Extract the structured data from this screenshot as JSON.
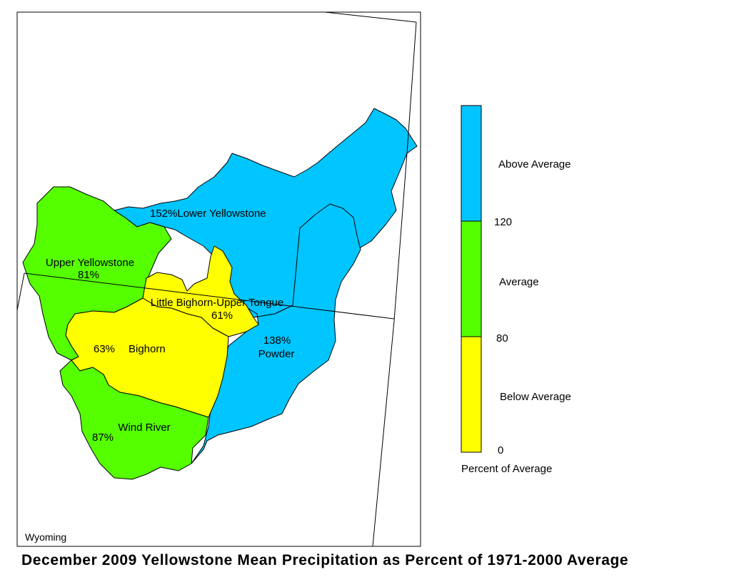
{
  "title": "December 2009 Yellowstone Mean Precipitation as Percent of 1971-2000 Average",
  "state_label": "Wyoming",
  "colors": {
    "above": "#00c5ff",
    "average": "#55ff00",
    "below": "#ffff00",
    "border": "#000000"
  },
  "basins": {
    "lower_yellowstone": {
      "name": "Lower Yellowstone",
      "percent": "152%",
      "category": "above"
    },
    "upper_yellowstone": {
      "name": "Upper Yellowstone",
      "percent": "81%",
      "category": "average"
    },
    "little_bighorn": {
      "name": "Little Bighorn-Upper Tongue",
      "percent": "61%",
      "category": "below"
    },
    "bighorn": {
      "name": "Bighorn",
      "percent": "63%",
      "category": "below"
    },
    "powder": {
      "name": "Powder",
      "percent": "138%",
      "category": "above"
    },
    "wind_river": {
      "name": "Wind River",
      "percent": "87%",
      "category": "average"
    }
  },
  "legend": {
    "title": "Percent of Average",
    "classes": [
      {
        "label": "Above Average",
        "color": "#00c5ff"
      },
      {
        "label": "Average",
        "color": "#55ff00"
      },
      {
        "label": "Below Average",
        "color": "#ffff00"
      }
    ],
    "breaks": [
      "120",
      "80",
      "0"
    ]
  }
}
